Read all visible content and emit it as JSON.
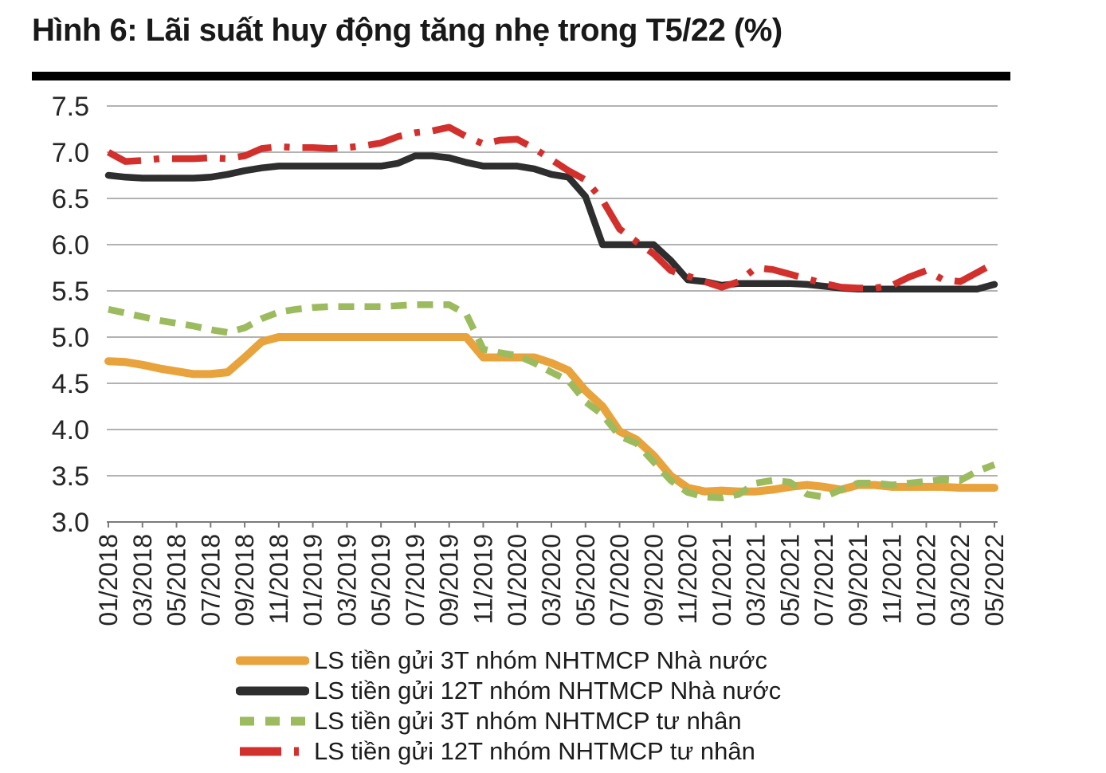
{
  "title": "Hình 6: Lãi suất huy động tăng nhẹ trong T5/22 (%)",
  "colors": {
    "title_text": "#191919",
    "title_rule": "#000000",
    "grid": "#999999",
    "axis": "#7a7a7a",
    "axis_text": "#262626",
    "series_orange": "#E8A33C",
    "series_black": "#2E2E2E",
    "series_green": "#9CBB5E",
    "series_red": "#D2302C"
  },
  "chart_data": {
    "type": "line",
    "title": "Hình 6: Lãi suất huy động tăng nhẹ trong T5/22 (%)",
    "xlabel": "",
    "ylabel": "",
    "x_start": "01/2018",
    "x_end": "05/2022",
    "x_frequency": "monthly",
    "ylim": [
      3.0,
      7.5
    ],
    "y_tick_step": 0.5,
    "grid": "horizontal",
    "legend_position": "bottom",
    "y_tick_labels": [
      "7.5",
      "7.0",
      "6.5",
      "6.0",
      "5.5",
      "5.0",
      "4.5",
      "4.0",
      "3.5",
      "3.0"
    ],
    "x_tick_labels": [
      "01/2018",
      "03/2018",
      "05/2018",
      "07/2018",
      "09/2018",
      "11/2018",
      "01/2019",
      "03/2019",
      "05/2019",
      "07/2019",
      "09/2019",
      "11/2019",
      "01/2020",
      "03/2020",
      "05/2020",
      "07/2020",
      "09/2020",
      "11/2020",
      "01/2021",
      "03/2021",
      "05/2021",
      "07/2021",
      "09/2021",
      "11/2021",
      "01/2022",
      "03/2022",
      "05/2022"
    ],
    "series": [
      {
        "name": "LS tiền gửi 3T nhóm NHTMCP Nhà nước",
        "color": "#E8A33C",
        "style": "solid",
        "values": [
          4.74,
          4.73,
          4.7,
          4.66,
          4.63,
          4.6,
          4.6,
          4.62,
          4.78,
          4.95,
          5.0,
          5.0,
          5.0,
          5.0,
          5.0,
          5.0,
          5.0,
          5.0,
          5.0,
          5.0,
          5.0,
          5.0,
          4.78,
          4.78,
          4.78,
          4.78,
          4.72,
          4.64,
          4.42,
          4.25,
          3.98,
          3.89,
          3.72,
          3.5,
          3.37,
          3.33,
          3.34,
          3.33,
          3.33,
          3.35,
          3.38,
          3.4,
          3.38,
          3.35,
          3.4,
          3.4,
          3.38,
          3.38,
          3.38,
          3.38,
          3.37,
          3.37,
          3.37
        ]
      },
      {
        "name": "LS tiền gửi 12T nhóm NHTMCP Nhà nước",
        "color": "#2E2E2E",
        "style": "solid",
        "values": [
          6.75,
          6.73,
          6.72,
          6.72,
          6.72,
          6.72,
          6.73,
          6.76,
          6.8,
          6.83,
          6.85,
          6.85,
          6.85,
          6.85,
          6.85,
          6.85,
          6.85,
          6.88,
          6.96,
          6.96,
          6.94,
          6.89,
          6.85,
          6.85,
          6.85,
          6.82,
          6.76,
          6.73,
          6.52,
          6.0,
          6.0,
          6.0,
          6.0,
          5.83,
          5.62,
          5.6,
          5.56,
          5.58,
          5.58,
          5.58,
          5.58,
          5.57,
          5.55,
          5.53,
          5.52,
          5.52,
          5.52,
          5.52,
          5.52,
          5.52,
          5.52,
          5.52,
          5.57
        ]
      },
      {
        "name": "LS tiền gửi 3T nhóm NHTMCP tư nhân",
        "color": "#9CBB5E",
        "style": "dashed",
        "values": [
          5.3,
          5.26,
          5.22,
          5.18,
          5.15,
          5.12,
          5.08,
          5.05,
          5.1,
          5.2,
          5.27,
          5.3,
          5.32,
          5.33,
          5.33,
          5.33,
          5.33,
          5.34,
          5.35,
          5.35,
          5.35,
          5.25,
          4.87,
          4.83,
          4.8,
          4.72,
          4.62,
          4.53,
          4.3,
          4.16,
          3.93,
          3.85,
          3.65,
          3.45,
          3.32,
          3.27,
          3.26,
          3.3,
          3.42,
          3.45,
          3.43,
          3.3,
          3.27,
          3.35,
          3.42,
          3.42,
          3.4,
          3.42,
          3.44,
          3.46,
          3.45,
          3.55,
          3.62
        ]
      },
      {
        "name": "LS tiền gửi 12T nhóm NHTMCP tư nhân",
        "color": "#D2302C",
        "style": "dash-dot",
        "values": [
          7.0,
          6.9,
          6.91,
          6.93,
          6.93,
          6.93,
          6.94,
          6.93,
          6.96,
          7.04,
          7.06,
          7.05,
          7.05,
          7.04,
          7.05,
          7.07,
          7.1,
          7.17,
          7.21,
          7.23,
          7.27,
          7.17,
          7.09,
          7.13,
          7.14,
          7.04,
          6.92,
          6.8,
          6.7,
          6.48,
          6.17,
          6.03,
          5.9,
          5.72,
          5.66,
          5.6,
          5.54,
          5.6,
          5.75,
          5.73,
          5.68,
          5.63,
          5.58,
          5.54,
          5.53,
          5.53,
          5.56,
          5.65,
          5.72,
          5.62,
          5.6,
          5.7,
          5.8
        ]
      }
    ]
  }
}
